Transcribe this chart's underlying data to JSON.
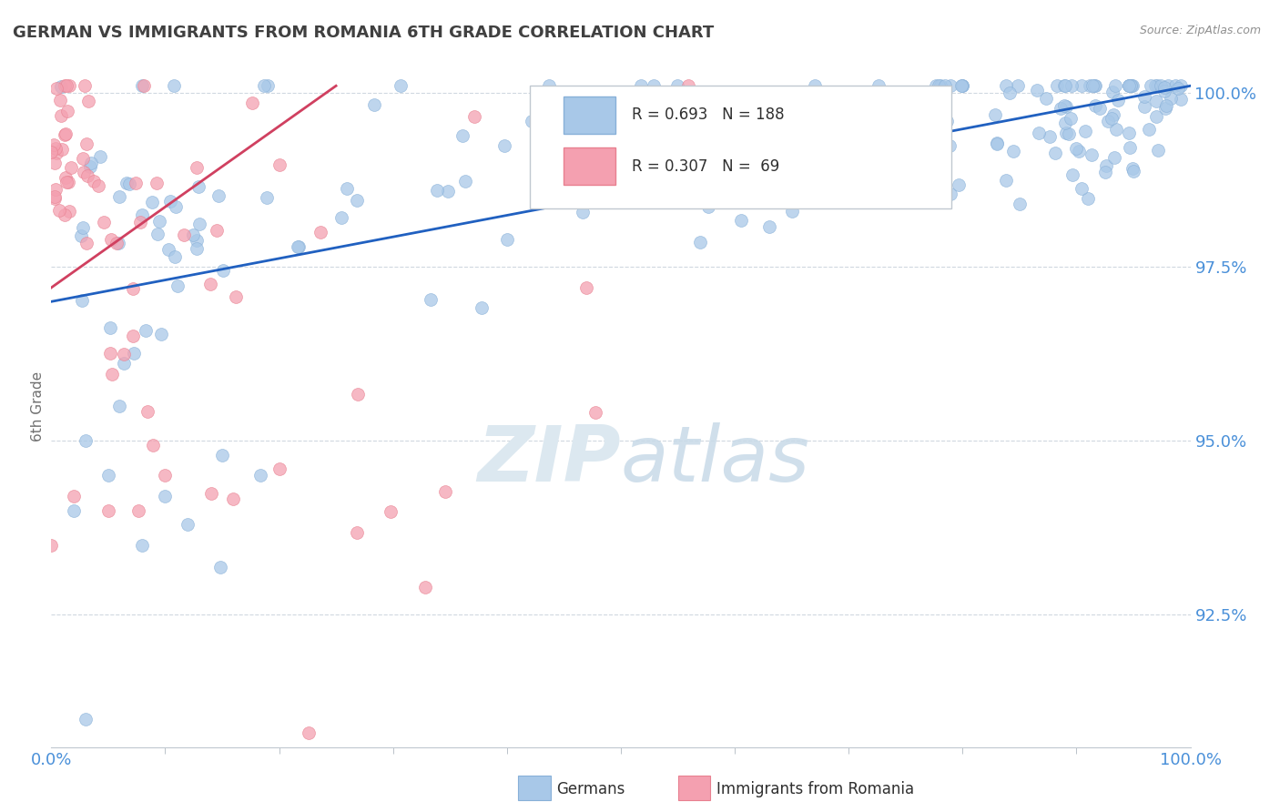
{
  "title": "GERMAN VS IMMIGRANTS FROM ROMANIA 6TH GRADE CORRELATION CHART",
  "source_text": "Source: ZipAtlas.com",
  "ylabel": "6th Grade",
  "x_min": 0.0,
  "x_max": 1.0,
  "y_min": 0.906,
  "y_max": 1.004,
  "y_tick_labels": [
    "92.5%",
    "95.0%",
    "97.5%",
    "100.0%"
  ],
  "y_tick_values": [
    0.925,
    0.95,
    0.975,
    1.0
  ],
  "blue_R": 0.693,
  "blue_N": 188,
  "pink_R": 0.307,
  "pink_N": 69,
  "blue_color": "#a8c8e8",
  "pink_color": "#f4a0b0",
  "blue_edge_color": "#88b0d8",
  "pink_edge_color": "#e88090",
  "blue_line_color": "#2060c0",
  "pink_line_color": "#d04060",
  "watermark_color": "#dce8f0",
  "title_color": "#404040",
  "axis_label_color": "#4a90d9",
  "grid_color": "#d0d8e0",
  "background_color": "#ffffff",
  "blue_scatter_seed": 123,
  "pink_scatter_seed": 456,
  "blue_line_x0": 0.0,
  "blue_line_y0": 0.97,
  "blue_line_x1": 1.0,
  "blue_line_y1": 1.001,
  "pink_line_x0": 0.0,
  "pink_line_y0": 0.972,
  "pink_line_x1": 0.25,
  "pink_line_y1": 1.001
}
